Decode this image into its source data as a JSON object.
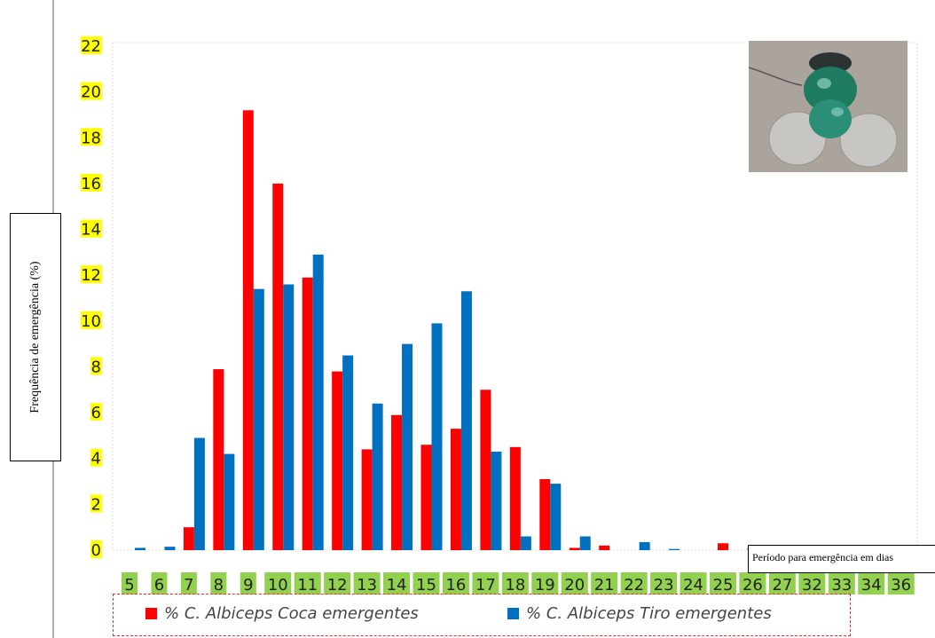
{
  "chart_data": {
    "type": "bar",
    "title": "",
    "ylabel": "Frequência de emergência (%)",
    "xlabel": "Período para emergência em dias",
    "ylim": [
      0,
      22
    ],
    "yticks": [
      "0",
      "2",
      "4",
      "6",
      "8",
      "10",
      "12",
      "14",
      "16",
      "18",
      "20",
      "22"
    ],
    "categories": [
      "5",
      "6",
      "7",
      "8",
      "9",
      "10",
      "11",
      "12",
      "13",
      "14",
      "15",
      "16",
      "17",
      "18",
      "19",
      "20",
      "21",
      "22",
      "23",
      "24",
      "25",
      "26",
      "27",
      "32",
      "33",
      "34",
      "36"
    ],
    "series": [
      {
        "name": "% C. Albiceps Coca emergentes",
        "color": "#ff0000",
        "values": [
          0,
          0,
          1,
          7.9,
          19.2,
          16,
          11.9,
          7.8,
          4.4,
          5.9,
          4.6,
          5.3,
          7,
          4.5,
          3.1,
          0.1,
          0.2,
          0,
          0,
          0,
          0.3,
          0.1,
          0,
          0,
          0,
          0,
          0
        ]
      },
      {
        "name": "% C. Albiceps Tiro emergentes",
        "color": "#0070c0",
        "values": [
          0.1,
          0.15,
          4.9,
          4.2,
          11.4,
          11.6,
          12.9,
          8.5,
          6.4,
          9,
          9.9,
          11.3,
          4.3,
          0.6,
          2.9,
          0.6,
          0,
          0.35,
          0.05,
          0,
          0,
          0,
          0,
          0,
          0,
          0,
          0
        ]
      }
    ],
    "grid": false,
    "legend_position": "bottom",
    "ytick_highlight_color": "#ffff00",
    "xtick_highlight_color": "#92d050"
  },
  "image": {
    "subject": "fly-photo"
  }
}
